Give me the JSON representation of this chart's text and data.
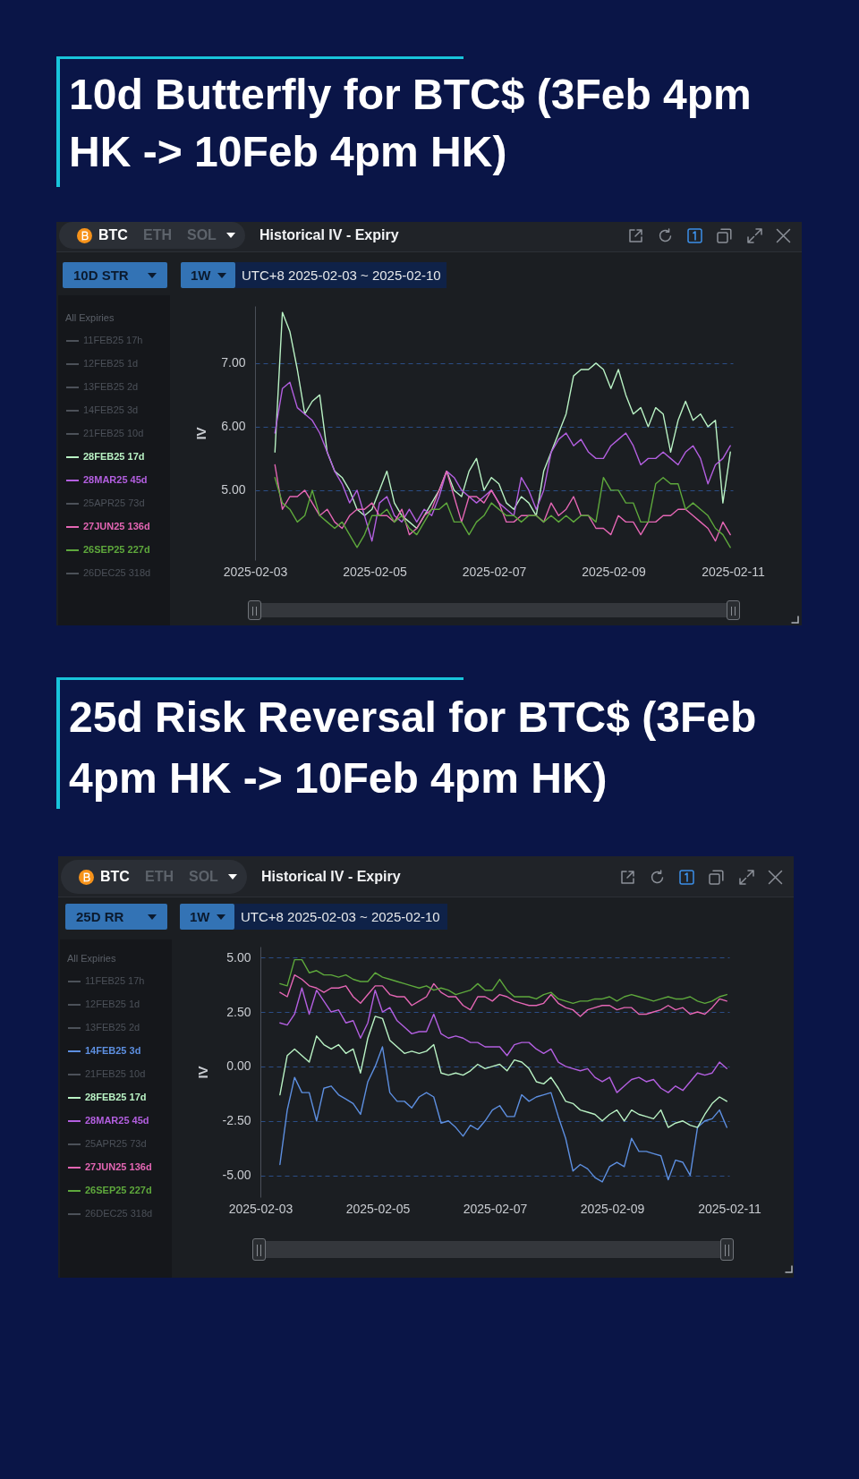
{
  "chart_data": [
    {
      "type": "line",
      "title": "10d Butterfly for BTC$ (3Feb 4pm HK -> 10Feb 4pm HK)",
      "subtitle": "Historical IV - Expiry",
      "ylabel": "IV",
      "legend_title": "All Expiries",
      "annotations": [
        "BTC",
        "ETH",
        "SOL",
        "10D STR",
        "1W",
        "UTC+8 2025-02-03 ~ 2025-02-10"
      ],
      "x": [
        "2025-02-03T08:00",
        "2025-02-03T11:00",
        "2025-02-03T14:00",
        "2025-02-03T17:00",
        "2025-02-03T20:00",
        "2025-02-03T23:00",
        "2025-02-04T02:00",
        "2025-02-04T05:00",
        "2025-02-04T08:00",
        "2025-02-04T11:00",
        "2025-02-04T14:00",
        "2025-02-04T17:00",
        "2025-02-04T20:00",
        "2025-02-04T23:00",
        "2025-02-05T02:00",
        "2025-02-05T05:00",
        "2025-02-05T08:00",
        "2025-02-05T11:00",
        "2025-02-05T14:00",
        "2025-02-05T17:00",
        "2025-02-05T20:00",
        "2025-02-05T23:00",
        "2025-02-06T02:00",
        "2025-02-06T05:00",
        "2025-02-06T08:00",
        "2025-02-06T11:00",
        "2025-02-06T14:00",
        "2025-02-06T17:00",
        "2025-02-06T20:00",
        "2025-02-06T23:00",
        "2025-02-07T02:00",
        "2025-02-07T05:00",
        "2025-02-07T08:00",
        "2025-02-07T11:00",
        "2025-02-07T14:00",
        "2025-02-07T17:00",
        "2025-02-07T20:00",
        "2025-02-07T23:00",
        "2025-02-08T02:00",
        "2025-02-08T05:00",
        "2025-02-08T08:00",
        "2025-02-08T11:00",
        "2025-02-08T14:00",
        "2025-02-08T17:00",
        "2025-02-08T20:00",
        "2025-02-08T23:00",
        "2025-02-09T02:00",
        "2025-02-09T05:00",
        "2025-02-09T08:00",
        "2025-02-09T11:00",
        "2025-02-09T14:00",
        "2025-02-09T17:00",
        "2025-02-09T20:00",
        "2025-02-09T23:00",
        "2025-02-10T02:00",
        "2025-02-10T05:00",
        "2025-02-10T08:00",
        "2025-02-10T11:00",
        "2025-02-10T14:00",
        "2025-02-10T17:00",
        "2025-02-10T20:00",
        "2025-02-10T23:00"
      ],
      "xlim": [
        "2025-02-03",
        "2025-02-11"
      ],
      "xticks": [
        "2025-02-03",
        "2025-02-05",
        "2025-02-07",
        "2025-02-09",
        "2025-02-11"
      ],
      "ylim": [
        3.9,
        7.9
      ],
      "yticks": [
        {
          "value": 5,
          "label": "5.00"
        },
        {
          "value": 6,
          "label": "6.00"
        },
        {
          "value": 7,
          "label": "7.00"
        }
      ],
      "grid": "y",
      "legend": "left",
      "series": [
        {
          "name": "11FEB25 17h",
          "color": "#4c5159",
          "values": [
            null,
            null,
            null,
            null,
            null,
            null,
            null,
            null,
            null,
            null,
            null,
            null,
            null,
            null,
            null,
            null,
            null,
            null,
            null,
            null,
            null,
            null,
            null,
            null,
            null,
            null,
            null,
            null,
            null,
            null,
            null,
            null,
            null,
            null,
            null,
            null,
            null,
            null,
            null,
            null,
            null,
            null,
            null,
            null,
            null,
            null,
            null,
            null,
            null,
            null,
            null,
            null,
            null,
            null,
            null,
            null,
            null,
            null,
            null,
            null,
            null,
            null
          ]
        },
        {
          "name": "12FEB25 1d",
          "color": "#4c5159",
          "values": [
            null,
            null,
            null,
            null,
            null,
            null,
            null,
            null,
            null,
            null,
            null,
            null,
            null,
            null,
            null,
            null,
            null,
            null,
            null,
            null,
            null,
            null,
            null,
            null,
            null,
            null,
            null,
            null,
            null,
            null,
            null,
            null,
            null,
            null,
            null,
            null,
            null,
            null,
            null,
            null,
            null,
            null,
            null,
            null,
            null,
            null,
            null,
            null,
            null,
            null,
            null,
            null,
            null,
            null,
            null,
            null,
            null,
            null,
            null,
            null,
            null,
            null
          ]
        },
        {
          "name": "13FEB25 2d",
          "color": "#4c5159",
          "values": [
            null,
            null,
            null,
            null,
            null,
            null,
            null,
            null,
            null,
            null,
            null,
            null,
            null,
            null,
            null,
            null,
            null,
            null,
            null,
            null,
            null,
            null,
            null,
            null,
            null,
            null,
            null,
            null,
            null,
            null,
            null,
            null,
            null,
            null,
            null,
            null,
            null,
            null,
            null,
            null,
            null,
            null,
            null,
            null,
            null,
            null,
            null,
            null,
            null,
            null,
            null,
            null,
            null,
            null,
            null,
            null,
            null,
            null,
            null,
            null,
            null,
            null
          ]
        },
        {
          "name": "14FEB25 3d",
          "color": "#4c5159",
          "values": [
            null,
            null,
            null,
            null,
            null,
            null,
            null,
            null,
            null,
            null,
            null,
            null,
            null,
            null,
            null,
            null,
            null,
            null,
            null,
            null,
            null,
            null,
            null,
            null,
            null,
            null,
            null,
            null,
            null,
            null,
            null,
            null,
            null,
            null,
            null,
            null,
            null,
            null,
            null,
            null,
            null,
            null,
            null,
            null,
            null,
            null,
            null,
            null,
            null,
            null,
            null,
            null,
            null,
            null,
            null,
            null,
            null,
            null,
            null,
            null,
            null,
            null
          ]
        },
        {
          "name": "21FEB25 10d",
          "color": "#4c5159",
          "values": [
            null,
            null,
            null,
            null,
            null,
            null,
            null,
            null,
            null,
            null,
            null,
            null,
            null,
            null,
            null,
            null,
            null,
            null,
            null,
            null,
            null,
            null,
            null,
            null,
            null,
            null,
            null,
            null,
            null,
            null,
            null,
            null,
            null,
            null,
            null,
            null,
            null,
            null,
            null,
            null,
            null,
            null,
            null,
            null,
            null,
            null,
            null,
            null,
            null,
            null,
            null,
            null,
            null,
            null,
            null,
            null,
            null,
            null,
            null,
            null,
            null,
            null
          ]
        },
        {
          "name": "28FEB25 17d",
          "color": "#b9f2c4",
          "values": [
            5.6,
            7.8,
            7.5,
            6.9,
            6.2,
            6.4,
            6.5,
            5.6,
            5.3,
            5.2,
            5.0,
            4.7,
            4.6,
            4.7,
            5.0,
            5.3,
            4.8,
            4.6,
            4.5,
            4.4,
            4.6,
            4.8,
            5.0,
            5.3,
            5.0,
            4.9,
            5.3,
            5.5,
            5.0,
            5.2,
            5.1,
            4.8,
            4.7,
            4.9,
            4.8,
            4.6,
            5.3,
            5.6,
            5.9,
            6.2,
            6.8,
            6.9,
            6.9,
            7.0,
            6.9,
            6.6,
            6.9,
            6.5,
            6.2,
            6.3,
            6.0,
            6.3,
            6.2,
            5.6,
            6.1,
            6.4,
            6.1,
            6.2,
            6.0,
            6.1,
            4.8,
            5.6
          ]
        },
        {
          "name": "28MAR25 45d",
          "color": "#b35fe0",
          "values": [
            5.9,
            6.6,
            6.7,
            6.3,
            6.2,
            6.1,
            5.9,
            5.6,
            5.3,
            5.1,
            4.8,
            5.0,
            4.6,
            4.2,
            4.8,
            4.9,
            4.6,
            4.5,
            4.7,
            4.5,
            4.7,
            4.6,
            4.9,
            5.3,
            5.2,
            5.0,
            4.9,
            4.8,
            4.9,
            5.0,
            4.8,
            4.7,
            4.6,
            5.2,
            5.0,
            4.7,
            5.0,
            5.6,
            5.8,
            5.9,
            5.7,
            5.8,
            5.6,
            5.5,
            5.5,
            5.7,
            5.8,
            5.9,
            5.7,
            5.4,
            5.5,
            5.5,
            5.6,
            5.5,
            5.4,
            5.6,
            5.7,
            5.5,
            5.1,
            5.4,
            5.5,
            5.7
          ]
        },
        {
          "name": "25APR25 73d",
          "color": "#4c5159",
          "values": [
            null,
            null,
            null,
            null,
            null,
            null,
            null,
            null,
            null,
            null,
            null,
            null,
            null,
            null,
            null,
            null,
            null,
            null,
            null,
            null,
            null,
            null,
            null,
            null,
            null,
            null,
            null,
            null,
            null,
            null,
            null,
            null,
            null,
            null,
            null,
            null,
            null,
            null,
            null,
            null,
            null,
            null,
            null,
            null,
            null,
            null,
            null,
            null,
            null,
            null,
            null,
            null,
            null,
            null,
            null,
            null,
            null,
            null,
            null,
            null,
            null,
            null
          ]
        },
        {
          "name": "27JUN25 136d",
          "color": "#e466b4",
          "values": [
            5.4,
            4.7,
            4.9,
            4.9,
            5.0,
            4.8,
            4.6,
            4.7,
            4.5,
            4.4,
            4.6,
            4.7,
            4.7,
            4.8,
            4.6,
            4.6,
            4.5,
            4.7,
            4.3,
            4.4,
            4.6,
            4.7,
            5.0,
            5.3,
            4.9,
            4.5,
            4.9,
            4.9,
            4.8,
            5.0,
            4.8,
            4.5,
            4.5,
            4.6,
            4.6,
            4.6,
            4.5,
            4.8,
            4.6,
            4.7,
            4.9,
            4.6,
            4.6,
            4.4,
            4.4,
            4.3,
            4.6,
            4.5,
            4.5,
            4.3,
            4.5,
            4.5,
            4.6,
            4.6,
            4.7,
            4.7,
            4.6,
            4.5,
            4.4,
            4.2,
            4.5,
            4.3
          ]
        },
        {
          "name": "26SEP25 227d",
          "color": "#5ea83c",
          "values": [
            5.2,
            4.8,
            4.7,
            4.5,
            4.6,
            5.0,
            4.6,
            4.5,
            4.4,
            4.5,
            4.3,
            4.1,
            4.3,
            4.6,
            4.6,
            4.7,
            4.5,
            4.6,
            4.4,
            4.3,
            4.5,
            4.7,
            4.7,
            4.8,
            4.5,
            4.5,
            4.3,
            4.5,
            4.6,
            4.8,
            4.7,
            4.6,
            4.6,
            4.5,
            4.6,
            4.6,
            4.5,
            4.6,
            4.5,
            4.6,
            4.5,
            4.6,
            4.6,
            4.5,
            5.2,
            5.0,
            5.0,
            4.8,
            4.8,
            4.5,
            4.5,
            5.1,
            5.2,
            5.1,
            5.1,
            4.7,
            4.8,
            4.7,
            4.6,
            4.4,
            4.3,
            4.1
          ]
        },
        {
          "name": "26DEC25 318d",
          "color": "#4c5159",
          "values": [
            null,
            null,
            null,
            null,
            null,
            null,
            null,
            null,
            null,
            null,
            null,
            null,
            null,
            null,
            null,
            null,
            null,
            null,
            null,
            null,
            null,
            null,
            null,
            null,
            null,
            null,
            null,
            null,
            null,
            null,
            null,
            null,
            null,
            null,
            null,
            null,
            null,
            null,
            null,
            null,
            null,
            null,
            null,
            null,
            null,
            null,
            null,
            null,
            null,
            null,
            null,
            null,
            null,
            null,
            null,
            null,
            null,
            null,
            null,
            null,
            null,
            null
          ]
        }
      ]
    },
    {
      "type": "line",
      "title": "25d Risk Reversal for BTC$ (3Feb 4pm HK -> 10Feb 4pm HK)",
      "subtitle": "Historical IV - Expiry",
      "ylabel": "IV",
      "legend_title": "All Expiries",
      "annotations": [
        "BTC",
        "ETH",
        "SOL",
        "25D RR",
        "1W",
        "UTC+8 2025-02-03 ~ 2025-02-10"
      ],
      "x": [
        "2025-02-03T08:00",
        "2025-02-03T11:00",
        "2025-02-03T14:00",
        "2025-02-03T17:00",
        "2025-02-03T20:00",
        "2025-02-03T23:00",
        "2025-02-04T02:00",
        "2025-02-04T05:00",
        "2025-02-04T08:00",
        "2025-02-04T11:00",
        "2025-02-04T14:00",
        "2025-02-04T17:00",
        "2025-02-04T20:00",
        "2025-02-04T23:00",
        "2025-02-05T02:00",
        "2025-02-05T05:00",
        "2025-02-05T08:00",
        "2025-02-05T11:00",
        "2025-02-05T14:00",
        "2025-02-05T17:00",
        "2025-02-05T20:00",
        "2025-02-05T23:00",
        "2025-02-06T02:00",
        "2025-02-06T05:00",
        "2025-02-06T08:00",
        "2025-02-06T11:00",
        "2025-02-06T14:00",
        "2025-02-06T17:00",
        "2025-02-06T20:00",
        "2025-02-06T23:00",
        "2025-02-07T02:00",
        "2025-02-07T05:00",
        "2025-02-07T08:00",
        "2025-02-07T11:00",
        "2025-02-07T14:00",
        "2025-02-07T17:00",
        "2025-02-07T20:00",
        "2025-02-07T23:00",
        "2025-02-08T02:00",
        "2025-02-08T05:00",
        "2025-02-08T08:00",
        "2025-02-08T11:00",
        "2025-02-08T14:00",
        "2025-02-08T17:00",
        "2025-02-08T20:00",
        "2025-02-08T23:00",
        "2025-02-09T02:00",
        "2025-02-09T05:00",
        "2025-02-09T08:00",
        "2025-02-09T11:00",
        "2025-02-09T14:00",
        "2025-02-09T17:00",
        "2025-02-09T20:00",
        "2025-02-09T23:00",
        "2025-02-10T02:00",
        "2025-02-10T05:00",
        "2025-02-10T08:00",
        "2025-02-10T11:00",
        "2025-02-10T14:00",
        "2025-02-10T17:00",
        "2025-02-10T20:00",
        "2025-02-10T23:00"
      ],
      "xlim": [
        "2025-02-03",
        "2025-02-11"
      ],
      "xticks": [
        "2025-02-03",
        "2025-02-05",
        "2025-02-07",
        "2025-02-09",
        "2025-02-11"
      ],
      "ylim": [
        -6,
        5.5
      ],
      "yticks": [
        {
          "value": -5,
          "label": "-5.00"
        },
        {
          "value": -2.5,
          "label": "-2.50"
        },
        {
          "value": 0,
          "label": "0.00"
        },
        {
          "value": 2.5,
          "label": "2.50"
        },
        {
          "value": 5,
          "label": "5.00"
        }
      ],
      "grid": "y",
      "legend": "left",
      "series": [
        {
          "name": "11FEB25 17h",
          "color": "#4c5159",
          "values": [
            null,
            null,
            null,
            null,
            null,
            null,
            null,
            null,
            null,
            null,
            null,
            null,
            null,
            null,
            null,
            null,
            null,
            null,
            null,
            null,
            null,
            null,
            null,
            null,
            null,
            null,
            null,
            null,
            null,
            null,
            null,
            null,
            null,
            null,
            null,
            null,
            null,
            null,
            null,
            null,
            null,
            null,
            null,
            null,
            null,
            null,
            null,
            null,
            null,
            null,
            null,
            null,
            null,
            null,
            null,
            null,
            null,
            null,
            null,
            null,
            null,
            null
          ]
        },
        {
          "name": "12FEB25 1d",
          "color": "#4c5159",
          "values": [
            null,
            null,
            null,
            null,
            null,
            null,
            null,
            null,
            null,
            null,
            null,
            null,
            null,
            null,
            null,
            null,
            null,
            null,
            null,
            null,
            null,
            null,
            null,
            null,
            null,
            null,
            null,
            null,
            null,
            null,
            null,
            null,
            null,
            null,
            null,
            null,
            null,
            null,
            null,
            null,
            null,
            null,
            null,
            null,
            null,
            null,
            null,
            null,
            null,
            null,
            null,
            null,
            null,
            null,
            null,
            null,
            null,
            null,
            null,
            null,
            null,
            null
          ]
        },
        {
          "name": "13FEB25 2d",
          "color": "#4c5159",
          "values": [
            null,
            null,
            null,
            null,
            null,
            null,
            null,
            null,
            null,
            null,
            null,
            null,
            null,
            null,
            null,
            null,
            null,
            null,
            null,
            null,
            null,
            null,
            null,
            null,
            null,
            null,
            null,
            null,
            null,
            null,
            null,
            null,
            null,
            null,
            null,
            null,
            null,
            null,
            null,
            null,
            null,
            null,
            null,
            null,
            null,
            null,
            null,
            null,
            null,
            null,
            null,
            null,
            null,
            null,
            null,
            null,
            null,
            null,
            null,
            null,
            null,
            null
          ]
        },
        {
          "name": "14FEB25 3d",
          "color": "#5d8fe0",
          "values": [
            -4.5,
            -2.0,
            -0.5,
            -1.2,
            -1.2,
            -2.5,
            -1.0,
            -0.9,
            -1.3,
            -1.5,
            -1.7,
            -2.2,
            -0.7,
            0.0,
            0.9,
            -1.2,
            -1.6,
            -1.6,
            -1.9,
            -1.4,
            -1.2,
            -1.4,
            -2.6,
            -2.5,
            -2.8,
            -3.2,
            -2.7,
            -2.9,
            -2.5,
            -2.0,
            -1.8,
            -2.3,
            -2.3,
            -1.3,
            -1.6,
            -1.4,
            -1.3,
            -1.2,
            -2.3,
            -3.3,
            -4.8,
            -4.5,
            -4.7,
            -5.1,
            -5.3,
            -4.6,
            -4.4,
            -4.6,
            -3.3,
            -3.9,
            -3.9,
            -4.0,
            -4.1,
            -5.2,
            -4.3,
            -4.4,
            -5.0,
            -2.8,
            -2.5,
            -2.4,
            -2.0,
            -2.8
          ]
        },
        {
          "name": "21FEB25 10d",
          "color": "#4c5159",
          "values": [
            null,
            null,
            null,
            null,
            null,
            null,
            null,
            null,
            null,
            null,
            null,
            null,
            null,
            null,
            null,
            null,
            null,
            null,
            null,
            null,
            null,
            null,
            null,
            null,
            null,
            null,
            null,
            null,
            null,
            null,
            null,
            null,
            null,
            null,
            null,
            null,
            null,
            null,
            null,
            null,
            null,
            null,
            null,
            null,
            null,
            null,
            null,
            null,
            null,
            null,
            null,
            null,
            null,
            null,
            null,
            null,
            null,
            null,
            null,
            null,
            null,
            null
          ]
        },
        {
          "name": "28FEB25 17d",
          "color": "#b9f2c4",
          "values": [
            -1.3,
            0.5,
            0.8,
            0.5,
            0.2,
            1.4,
            1.0,
            0.8,
            1.0,
            0.6,
            0.8,
            -0.3,
            1.3,
            2.3,
            2.2,
            1.2,
            0.9,
            0.6,
            0.7,
            0.6,
            0.7,
            1.0,
            -0.3,
            -0.4,
            -0.3,
            -0.4,
            -0.2,
            0.1,
            -0.1,
            0.0,
            0.1,
            -0.2,
            0.3,
            0.2,
            -0.1,
            -0.7,
            -0.8,
            -0.5,
            -1.0,
            -1.6,
            -1.7,
            -2.0,
            -2.1,
            -2.2,
            -2.5,
            -2.2,
            -2.0,
            -2.5,
            -2.0,
            -2.2,
            -2.3,
            -2.4,
            -2.0,
            -2.8,
            -2.6,
            -2.5,
            -2.7,
            -2.8,
            -2.2,
            -1.7,
            -1.4,
            -1.6
          ]
        },
        {
          "name": "28MAR25 45d",
          "color": "#b35fe0",
          "values": [
            2.0,
            1.9,
            2.4,
            3.6,
            2.4,
            3.5,
            3.0,
            2.5,
            2.6,
            2.0,
            2.1,
            1.3,
            2.0,
            3.5,
            2.5,
            2.7,
            2.1,
            1.8,
            1.5,
            1.6,
            1.6,
            2.4,
            1.5,
            1.3,
            1.4,
            1.3,
            1.1,
            1.1,
            0.9,
            0.9,
            0.9,
            0.5,
            1.0,
            1.1,
            1.1,
            0.8,
            0.6,
            0.8,
            0.2,
            0.0,
            -0.1,
            -0.2,
            -0.1,
            -0.5,
            -0.7,
            -0.5,
            -1.2,
            -0.9,
            -0.6,
            -0.5,
            -0.7,
            -0.6,
            -1.0,
            -1.2,
            -0.9,
            -1.1,
            -0.7,
            -0.3,
            -0.4,
            -0.3,
            0.2,
            -0.1
          ]
        },
        {
          "name": "25APR25 73d",
          "color": "#4c5159",
          "values": [
            null,
            null,
            null,
            null,
            null,
            null,
            null,
            null,
            null,
            null,
            null,
            null,
            null,
            null,
            null,
            null,
            null,
            null,
            null,
            null,
            null,
            null,
            null,
            null,
            null,
            null,
            null,
            null,
            null,
            null,
            null,
            null,
            null,
            null,
            null,
            null,
            null,
            null,
            null,
            null,
            null,
            null,
            null,
            null,
            null,
            null,
            null,
            null,
            null,
            null,
            null,
            null,
            null,
            null,
            null,
            null,
            null,
            null,
            null,
            null,
            null,
            null
          ]
        },
        {
          "name": "27JUN25 136d",
          "color": "#e466b4",
          "values": [
            3.4,
            3.2,
            4.2,
            4.0,
            3.7,
            3.6,
            3.4,
            3.6,
            3.6,
            3.7,
            3.2,
            2.9,
            3.3,
            3.7,
            3.7,
            3.3,
            3.2,
            3.2,
            2.8,
            3.0,
            3.2,
            3.8,
            3.4,
            3.2,
            3.2,
            2.8,
            2.6,
            3.2,
            3.2,
            3.0,
            3.3,
            3.2,
            3.0,
            2.9,
            2.8,
            2.8,
            2.9,
            3.3,
            2.9,
            2.7,
            2.6,
            2.3,
            2.6,
            2.7,
            2.8,
            2.8,
            2.6,
            2.7,
            2.7,
            2.4,
            2.4,
            2.5,
            2.6,
            2.8,
            2.6,
            2.7,
            2.4,
            2.5,
            2.4,
            2.7,
            3.1,
            3.0
          ]
        },
        {
          "name": "26SEP25 227d",
          "color": "#5ea83c",
          "values": [
            3.8,
            3.7,
            4.9,
            4.9,
            4.3,
            4.4,
            4.2,
            4.2,
            4.1,
            4.2,
            4.0,
            3.9,
            3.9,
            4.3,
            4.1,
            4.0,
            3.9,
            3.8,
            3.7,
            3.6,
            3.7,
            3.5,
            3.6,
            3.5,
            3.3,
            3.4,
            3.5,
            3.8,
            3.5,
            3.5,
            4.0,
            3.5,
            3.2,
            3.2,
            3.2,
            3.1,
            3.3,
            3.4,
            3.1,
            3.0,
            2.9,
            3.0,
            3.0,
            3.1,
            3.1,
            3.2,
            3.0,
            3.2,
            3.3,
            3.2,
            3.1,
            3.0,
            3.1,
            3.2,
            3.1,
            3.1,
            3.2,
            3.0,
            2.9,
            3.0,
            3.2,
            3.3
          ]
        },
        {
          "name": "26DEC25 318d",
          "color": "#4c5159",
          "values": [
            null,
            null,
            null,
            null,
            null,
            null,
            null,
            null,
            null,
            null,
            null,
            null,
            null,
            null,
            null,
            null,
            null,
            null,
            null,
            null,
            null,
            null,
            null,
            null,
            null,
            null,
            null,
            null,
            null,
            null,
            null,
            null,
            null,
            null,
            null,
            null,
            null,
            null,
            null,
            null,
            null,
            null,
            null,
            null,
            null,
            null,
            null,
            null,
            null,
            null,
            null,
            null,
            null,
            null,
            null,
            null,
            null,
            null,
            null,
            null,
            null,
            null
          ]
        }
      ]
    }
  ]
}
